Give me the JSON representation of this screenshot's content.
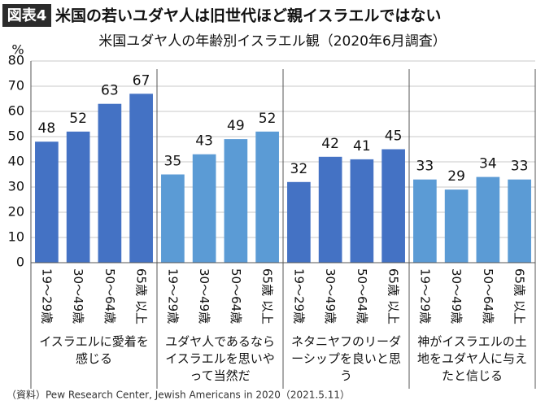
{
  "chart_data": {
    "type": "bar",
    "badge": "図表4",
    "title": "米国の若いユダヤ人は旧世代ほど親イスラエルではない",
    "subtitle": "米国ユダヤ人の年齢別イスラエル観（2020年6月調査）",
    "y_label": "%",
    "categories": [
      "19～29歳",
      "30～49歳",
      "50～64歳",
      "65歳 以上"
    ],
    "series": [
      {
        "name": "イスラエルに愛着を感じる",
        "color": "#4472c4",
        "values": [
          48,
          52,
          63,
          67
        ]
      },
      {
        "name": "ユダヤ人であるならイスラエルを思いやって当然だ",
        "color": "#5b9bd5",
        "values": [
          35,
          43,
          49,
          52
        ]
      },
      {
        "name": "ネタニヤフのリーダーシップを良いと思う",
        "color": "#4472c4",
        "values": [
          32,
          42,
          41,
          45
        ]
      },
      {
        "name": "神がイスラエルの土地をユダヤ人に与えたと信じる",
        "color": "#5b9bd5",
        "values": [
          33,
          29,
          34,
          33
        ]
      }
    ],
    "ylim": [
      0,
      80
    ],
    "yticks": [
      0,
      10,
      20,
      30,
      40,
      50,
      60,
      70,
      80
    ],
    "grid": true,
    "source": "（資料）Pew Research Center, Jewish Americans in 2020（2021.5.11）"
  }
}
